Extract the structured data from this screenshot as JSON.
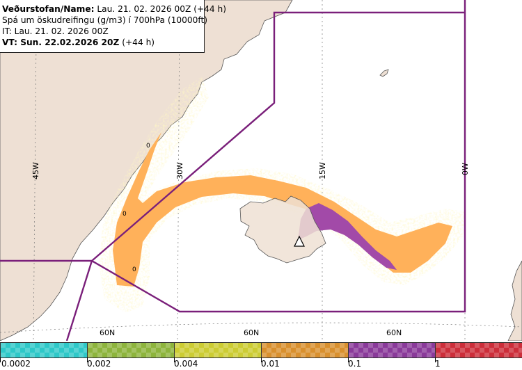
{
  "header": {
    "line1_bold": "Veðurstofan/Name:",
    "line1_rest": " Lau. 21. 02. 2026 00Z (+44 h)",
    "line2": "Spá um öskudreifingu (g/m3) í 700hPa (10000ft)",
    "line3": "IT: Lau. 21. 02. 2026 00Z",
    "line4_bold": "VT: Sun. 22.02.2026 20Z",
    "line4_rest": " (+44 h)"
  },
  "grid": {
    "meridians": [
      "45W",
      "30W",
      "15W",
      "0W"
    ],
    "parallels": [
      "60N",
      "60N",
      "60N"
    ]
  },
  "contour_labels": [
    "0",
    "0",
    "0"
  ],
  "legend": {
    "labels": [
      "0.0002",
      "0.002",
      "0.004",
      "0.01",
      "0.1",
      "1"
    ],
    "colors": [
      "#2ec8c8",
      "#8db43c",
      "#cccc33",
      "#d9902e",
      "#8a3a9a",
      "#cc2e3a"
    ]
  },
  "colors": {
    "land": "#eee0d4",
    "sea": "#ffffff",
    "boundary": "#7a1f7a",
    "ash_low": "#ffb15a",
    "ash_high": "#a24aa8",
    "ash_fringe": "#ffe88a"
  },
  "icons": {
    "volcano": "volcano-triangle-icon"
  }
}
